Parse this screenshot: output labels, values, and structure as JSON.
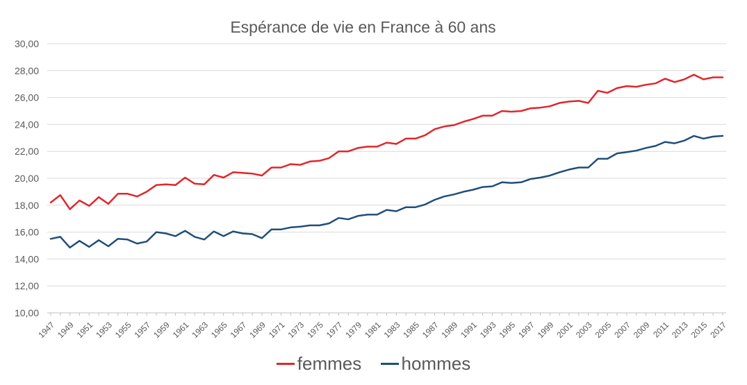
{
  "chart_data": {
    "type": "line",
    "title": "Espérance de vie en France à 60 ans",
    "xlabel": "",
    "ylabel": "",
    "ylim": [
      10,
      30
    ],
    "y_ticks": [
      "10,00",
      "12,00",
      "14,00",
      "16,00",
      "18,00",
      "20,00",
      "22,00",
      "24,00",
      "26,00",
      "28,00",
      "30,00"
    ],
    "x_tick_labels": [
      "1947",
      "1949",
      "1951",
      "1953",
      "1955",
      "1957",
      "1959",
      "1961",
      "1963",
      "1965",
      "1967",
      "1969",
      "1971",
      "1973",
      "1975",
      "1977",
      "1979",
      "1981",
      "1983",
      "1985",
      "1987",
      "1989",
      "1991",
      "1993",
      "1995",
      "1997",
      "1999",
      "2001",
      "2003",
      "2005",
      "2007",
      "2009",
      "2011",
      "2013",
      "2015",
      "2017"
    ],
    "x": [
      1947,
      1948,
      1949,
      1950,
      1951,
      1952,
      1953,
      1954,
      1955,
      1956,
      1957,
      1958,
      1959,
      1960,
      1961,
      1962,
      1963,
      1964,
      1965,
      1966,
      1967,
      1968,
      1969,
      1970,
      1971,
      1972,
      1973,
      1974,
      1975,
      1976,
      1977,
      1978,
      1979,
      1980,
      1981,
      1982,
      1983,
      1984,
      1985,
      1986,
      1987,
      1988,
      1989,
      1990,
      1991,
      1992,
      1993,
      1994,
      1995,
      1996,
      1997,
      1998,
      1999,
      2000,
      2001,
      2002,
      2003,
      2004,
      2005,
      2006,
      2007,
      2008,
      2009,
      2010,
      2011,
      2012,
      2013,
      2014,
      2015,
      2016,
      2017
    ],
    "grid": true,
    "legend_position": "bottom",
    "series": [
      {
        "name": "femmes",
        "color": "#e0262b",
        "values": [
          18.2,
          18.75,
          17.7,
          18.35,
          17.95,
          18.6,
          18.1,
          18.85,
          18.85,
          18.65,
          19.0,
          19.5,
          19.55,
          19.5,
          20.05,
          19.6,
          19.55,
          20.25,
          20.05,
          20.45,
          20.4,
          20.35,
          20.2,
          20.8,
          20.8,
          21.05,
          21.0,
          21.25,
          21.3,
          21.5,
          22.0,
          22.0,
          22.25,
          22.35,
          22.35,
          22.65,
          22.55,
          22.95,
          22.95,
          23.2,
          23.65,
          23.85,
          23.95,
          24.2,
          24.4,
          24.65,
          24.65,
          25.0,
          24.95,
          25.0,
          25.2,
          25.25,
          25.35,
          25.6,
          25.7,
          25.75,
          25.6,
          26.5,
          26.35,
          26.7,
          26.85,
          26.8,
          26.95,
          27.05,
          27.4,
          27.15,
          27.35,
          27.7,
          27.35,
          27.5,
          27.5
        ]
      },
      {
        "name": "hommes",
        "color": "#1f4e79",
        "values": [
          15.5,
          15.65,
          14.85,
          15.35,
          14.9,
          15.4,
          14.95,
          15.5,
          15.45,
          15.15,
          15.3,
          16.0,
          15.9,
          15.7,
          16.1,
          15.65,
          15.45,
          16.05,
          15.7,
          16.05,
          15.9,
          15.85,
          15.55,
          16.2,
          16.2,
          16.35,
          16.4,
          16.5,
          16.5,
          16.65,
          17.05,
          16.95,
          17.2,
          17.3,
          17.3,
          17.65,
          17.55,
          17.85,
          17.85,
          18.05,
          18.4,
          18.65,
          18.8,
          19.0,
          19.15,
          19.35,
          19.4,
          19.7,
          19.65,
          19.7,
          19.95,
          20.05,
          20.2,
          20.45,
          20.65,
          20.8,
          20.8,
          21.45,
          21.45,
          21.85,
          21.95,
          22.05,
          22.25,
          22.4,
          22.7,
          22.6,
          22.8,
          23.15,
          22.95,
          23.1,
          23.15
        ]
      }
    ]
  }
}
